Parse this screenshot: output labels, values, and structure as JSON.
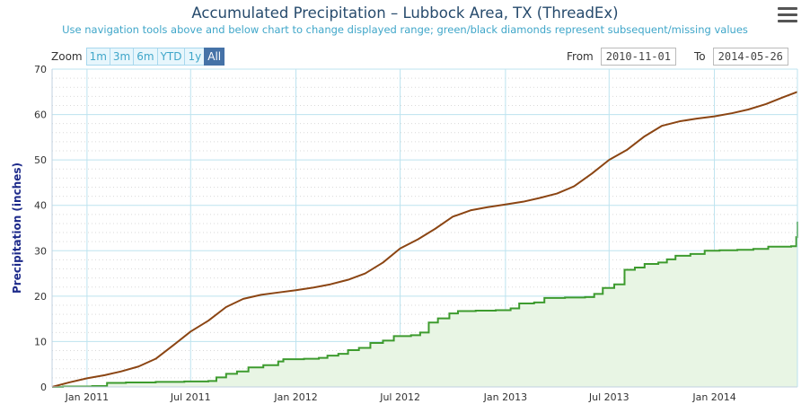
{
  "header": {
    "title": "Accumulated Precipitation – Lubbock Area, TX (ThreadEx)",
    "subtitle": "Use navigation tools above and below chart to change displayed range; green/black diamonds represent subsequent/missing values"
  },
  "zoom": {
    "label": "Zoom",
    "buttons": [
      "1m",
      "3m",
      "6m",
      "YTD",
      "1y",
      "All"
    ],
    "active": "All"
  },
  "range": {
    "from_label": "From",
    "from_value": "2010-11-01",
    "to_label": "To",
    "to_value": "2014-05-26"
  },
  "colors": {
    "normal_line": "#8b4513",
    "observed_line": "#3d9b2e",
    "observed_fill": "#e8f5e4",
    "grid": "#bde3ef",
    "title": "#274b6d",
    "subtitle": "#3fa6c9"
  },
  "icons": {
    "menu": "hamburger-menu-icon"
  },
  "chart_data": {
    "type": "line",
    "title": "Accumulated Precipitation – Lubbock Area, TX (ThreadEx)",
    "ylabel": "Precipitation (inches)",
    "xlabel": "",
    "xlim": [
      "2010-11-01",
      "2014-05-26"
    ],
    "ylim": [
      0,
      70
    ],
    "yticks": [
      0,
      10,
      20,
      30,
      40,
      50,
      60,
      70
    ],
    "xticks": [
      {
        "date": "2011-01-01",
        "label": "Jan 2011"
      },
      {
        "date": "2011-07-01",
        "label": "Jul 2011"
      },
      {
        "date": "2012-01-01",
        "label": "Jan 2012"
      },
      {
        "date": "2012-07-01",
        "label": "Jul 2012"
      },
      {
        "date": "2013-01-01",
        "label": "Jan 2013"
      },
      {
        "date": "2013-07-01",
        "label": "Jul 2013"
      },
      {
        "date": "2014-01-01",
        "label": "Jan 2014"
      }
    ],
    "grid": true,
    "series": [
      {
        "type": "line",
        "points": [
          [
            "2010-11-01",
            0.0
          ],
          [
            "2010-12-01",
            1.0
          ],
          [
            "2011-01-01",
            1.9
          ],
          [
            "2011-02-01",
            2.6
          ],
          [
            "2011-03-01",
            3.4
          ],
          [
            "2011-04-01",
            4.5
          ],
          [
            "2011-05-01",
            6.2
          ],
          [
            "2011-06-01",
            9.2
          ],
          [
            "2011-07-01",
            12.2
          ],
          [
            "2011-08-01",
            14.6
          ],
          [
            "2011-09-01",
            17.6
          ],
          [
            "2011-10-01",
            19.4
          ],
          [
            "2011-11-01",
            20.3
          ],
          [
            "2011-12-01",
            20.8
          ],
          [
            "2012-01-01",
            21.3
          ],
          [
            "2012-02-01",
            21.9
          ],
          [
            "2012-03-01",
            22.6
          ],
          [
            "2012-04-01",
            23.6
          ],
          [
            "2012-05-01",
            25.0
          ],
          [
            "2012-06-01",
            27.4
          ],
          [
            "2012-07-01",
            30.5
          ],
          [
            "2012-08-01",
            32.5
          ],
          [
            "2012-09-01",
            34.9
          ],
          [
            "2012-10-01",
            37.5
          ],
          [
            "2012-11-01",
            38.9
          ],
          [
            "2012-12-01",
            39.6
          ],
          [
            "2013-01-01",
            40.2
          ],
          [
            "2013-02-01",
            40.8
          ],
          [
            "2013-03-01",
            41.6
          ],
          [
            "2013-04-01",
            42.6
          ],
          [
            "2013-05-01",
            44.2
          ],
          [
            "2013-06-01",
            47.0
          ],
          [
            "2013-07-01",
            50.0
          ],
          [
            "2013-08-01",
            52.2
          ],
          [
            "2013-09-01",
            55.2
          ],
          [
            "2013-10-01",
            57.5
          ],
          [
            "2013-11-01",
            58.5
          ],
          [
            "2013-12-01",
            59.1
          ],
          [
            "2014-01-01",
            59.6
          ],
          [
            "2014-02-01",
            60.3
          ],
          [
            "2014-03-01",
            61.1
          ],
          [
            "2014-04-01",
            62.3
          ],
          [
            "2014-05-01",
            63.8
          ],
          [
            "2014-05-26",
            65.0
          ]
        ]
      },
      {
        "type": "area",
        "points": [
          [
            "2010-11-01",
            0.0
          ],
          [
            "2010-11-20",
            0.1
          ],
          [
            "2010-12-15",
            0.1
          ],
          [
            "2011-01-10",
            0.2
          ],
          [
            "2011-02-05",
            0.9
          ],
          [
            "2011-03-10",
            1.0
          ],
          [
            "2011-05-01",
            1.1
          ],
          [
            "2011-06-20",
            1.2
          ],
          [
            "2011-08-01",
            1.3
          ],
          [
            "2011-08-15",
            2.1
          ],
          [
            "2011-09-01",
            2.9
          ],
          [
            "2011-09-20",
            3.4
          ],
          [
            "2011-10-10",
            4.3
          ],
          [
            "2011-11-05",
            4.8
          ],
          [
            "2011-12-01",
            5.6
          ],
          [
            "2011-12-10",
            6.1
          ],
          [
            "2012-01-15",
            6.2
          ],
          [
            "2012-02-10",
            6.4
          ],
          [
            "2012-02-25",
            6.9
          ],
          [
            "2012-03-15",
            7.3
          ],
          [
            "2012-04-01",
            8.1
          ],
          [
            "2012-04-20",
            8.6
          ],
          [
            "2012-05-10",
            9.7
          ],
          [
            "2012-06-01",
            10.2
          ],
          [
            "2012-06-20",
            11.2
          ],
          [
            "2012-07-20",
            11.4
          ],
          [
            "2012-08-05",
            12.0
          ],
          [
            "2012-08-20",
            14.2
          ],
          [
            "2012-09-05",
            15.1
          ],
          [
            "2012-09-25",
            16.2
          ],
          [
            "2012-10-10",
            16.7
          ],
          [
            "2012-11-10",
            16.8
          ],
          [
            "2012-12-15",
            16.9
          ],
          [
            "2013-01-10",
            17.3
          ],
          [
            "2013-01-25",
            18.4
          ],
          [
            "2013-02-20",
            18.6
          ],
          [
            "2013-03-10",
            19.6
          ],
          [
            "2013-04-15",
            19.7
          ],
          [
            "2013-05-20",
            19.8
          ],
          [
            "2013-06-05",
            20.5
          ],
          [
            "2013-06-20",
            21.8
          ],
          [
            "2013-07-10",
            22.6
          ],
          [
            "2013-07-28",
            25.8
          ],
          [
            "2013-08-15",
            26.3
          ],
          [
            "2013-09-01",
            27.1
          ],
          [
            "2013-09-25",
            27.4
          ],
          [
            "2013-10-10",
            28.1
          ],
          [
            "2013-10-25",
            28.9
          ],
          [
            "2013-11-20",
            29.3
          ],
          [
            "2013-12-15",
            30.0
          ],
          [
            "2014-01-10",
            30.1
          ],
          [
            "2014-02-10",
            30.2
          ],
          [
            "2014-03-10",
            30.4
          ],
          [
            "2014-04-05",
            30.9
          ],
          [
            "2014-05-15",
            31.0
          ],
          [
            "2014-05-24",
            33.0
          ],
          [
            "2014-05-26",
            36.4
          ]
        ]
      }
    ]
  }
}
